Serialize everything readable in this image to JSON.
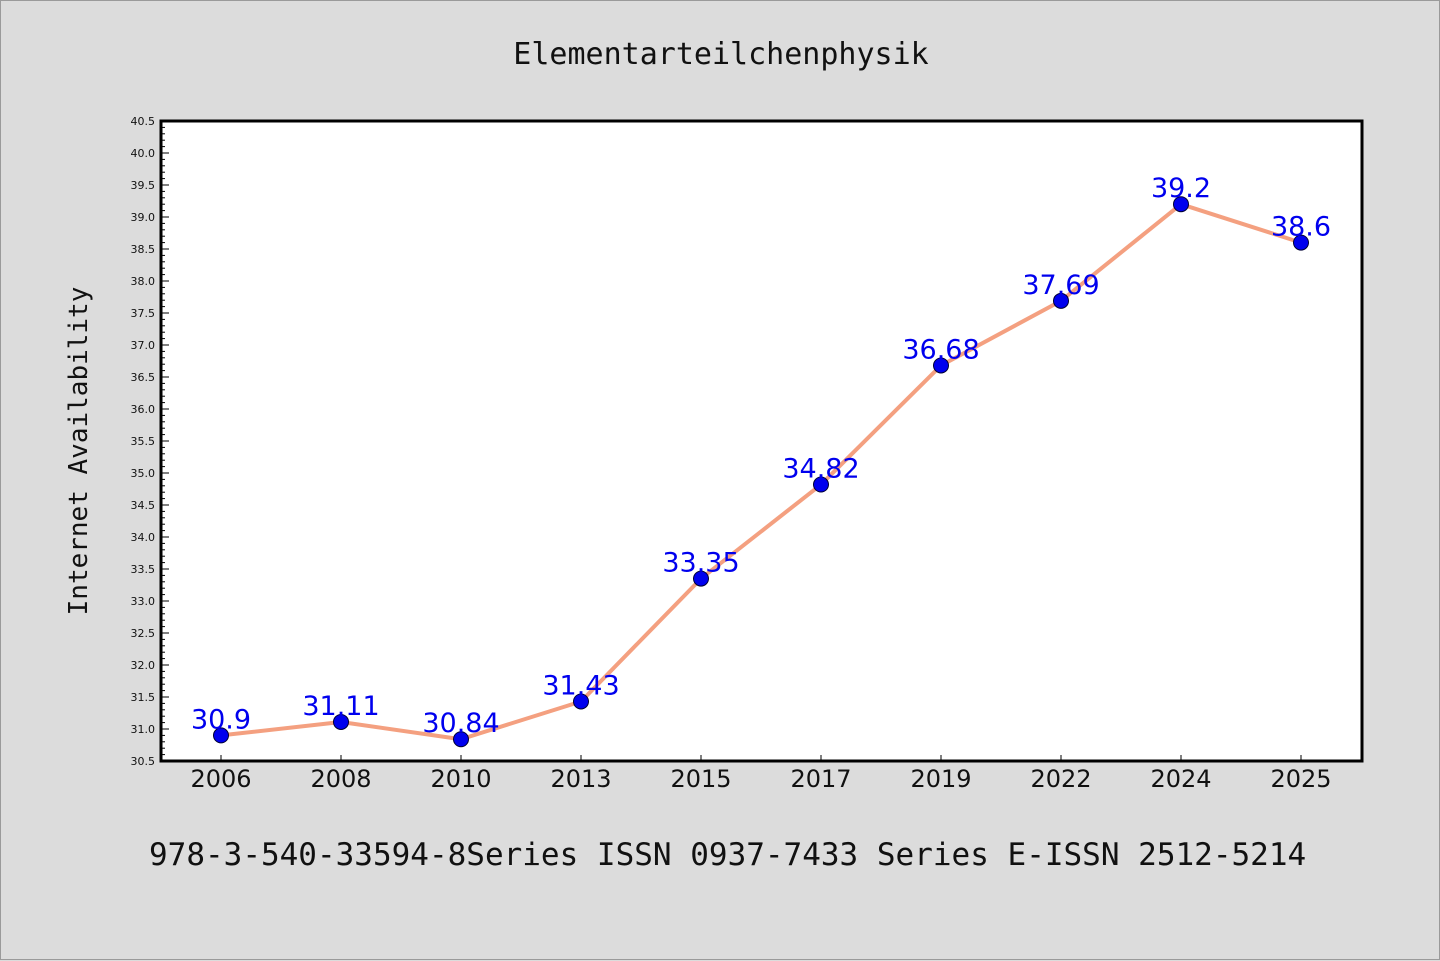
{
  "title": "Elementarteilchenphysik",
  "footer": "978-3-540-33594-8Series ISSN 0937-7433 Series E-ISSN 2512-5214",
  "colors": {
    "background": "#dcdcdc",
    "plot_background": "#ffffff",
    "line": "#f4a080",
    "marker": "#0000ee",
    "label": "#0000ee"
  },
  "chart_data": {
    "type": "line",
    "title": "Elementarteilchenphysik",
    "xlabel": "",
    "ylabel": "Internet Availability",
    "categories": [
      "2006",
      "2008",
      "2010",
      "2013",
      "2015",
      "2017",
      "2019",
      "2022",
      "2024",
      "2025"
    ],
    "series": [
      {
        "values": [
          30.9,
          31.11,
          30.84,
          31.43,
          33.35,
          34.82,
          36.68,
          37.69,
          39.2,
          38.6
        ],
        "labels": [
          "30.9",
          "31.11",
          "30.84",
          "31.43",
          "33.35",
          "34.82",
          "36.68",
          "37.69",
          "39.2",
          "38.6"
        ]
      }
    ],
    "ylim": [
      30.5,
      40.5
    ],
    "y_major_step": 0.5,
    "y_minor_step": 0.1,
    "grid": false,
    "legend": "none"
  }
}
